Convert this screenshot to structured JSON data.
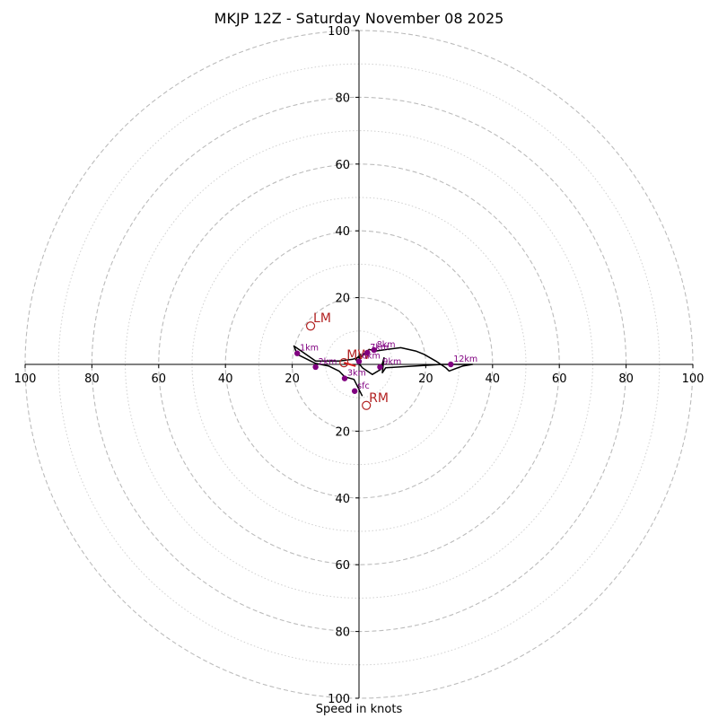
{
  "chart_data": {
    "type": "hodograph",
    "title": "MKJP 12Z - Saturday November 08 2025",
    "xlabel": "Speed in knots",
    "range": [
      -100,
      100
    ],
    "major_rings": [
      20,
      40,
      60,
      80,
      100
    ],
    "minor_rings": [
      10,
      30,
      50,
      70,
      90
    ],
    "x_ticks": [
      "100",
      "80",
      "60",
      "40",
      "20",
      "20",
      "40",
      "60",
      "80",
      "100"
    ],
    "y_ticks": [
      "100",
      "80",
      "60",
      "40",
      "20",
      "20",
      "40",
      "60",
      "80",
      "100"
    ],
    "x_tick_values": [
      -100,
      -80,
      -60,
      -40,
      -20,
      20,
      40,
      60,
      80,
      100
    ],
    "y_tick_values": [
      100,
      80,
      60,
      40,
      20,
      -20,
      -40,
      -60,
      -80,
      -100
    ],
    "trace": [
      [
        1,
        -9.5
      ],
      [
        -1.5,
        -4.5
      ],
      [
        -4.3,
        -3.7
      ],
      [
        -6,
        -2
      ],
      [
        -9,
        -0.5
      ],
      [
        -13,
        0.3
      ],
      [
        -18.5,
        3
      ],
      [
        -19.5,
        5.5
      ],
      [
        -13,
        1
      ],
      [
        -6,
        1
      ],
      [
        -2,
        1.5
      ],
      [
        1,
        2.5
      ],
      [
        3,
        4.5
      ],
      [
        5,
        4
      ],
      [
        8.5,
        4.5
      ],
      [
        12.5,
        5
      ],
      [
        17,
        4
      ],
      [
        19.5,
        3
      ],
      [
        23,
        1
      ],
      [
        26,
        -1
      ],
      [
        27,
        -2
      ],
      [
        31,
        -0.5
      ],
      [
        34,
        0
      ],
      [
        25,
        0
      ],
      [
        8,
        -1
      ],
      [
        7,
        -2.5
      ],
      [
        7.5,
        2
      ],
      [
        6.5,
        -1.5
      ],
      [
        4,
        -3
      ],
      [
        1,
        -1
      ],
      [
        -1,
        1.5
      ],
      [
        0.5,
        3
      ],
      [
        0,
        0.5
      ]
    ],
    "height_markers": [
      {
        "label": "sfc",
        "u": -1.3,
        "v": -8
      },
      {
        "label": "1km",
        "u": -18.5,
        "v": 3.3
      },
      {
        "label": "2km",
        "u": -13,
        "v": -0.8
      },
      {
        "label": "3km",
        "u": -4.3,
        "v": -4.2
      },
      {
        "label": "6km",
        "u": 0,
        "v": 0.9
      },
      {
        "label": "7km",
        "u": 2.5,
        "v": 3.5
      },
      {
        "label": "8km",
        "u": 4.5,
        "v": 4.3
      },
      {
        "label": "9km",
        "u": 6.3,
        "v": -0.8
      },
      {
        "label": "12km",
        "u": 27.5,
        "v": 0
      }
    ],
    "storm_motions": [
      {
        "label": "LM",
        "u": -14.5,
        "v": 11.5
      },
      {
        "label": "RM",
        "u": 2.2,
        "v": -12.3
      },
      {
        "label": "MW",
        "u": -4.5,
        "v": 0.5
      }
    ]
  }
}
